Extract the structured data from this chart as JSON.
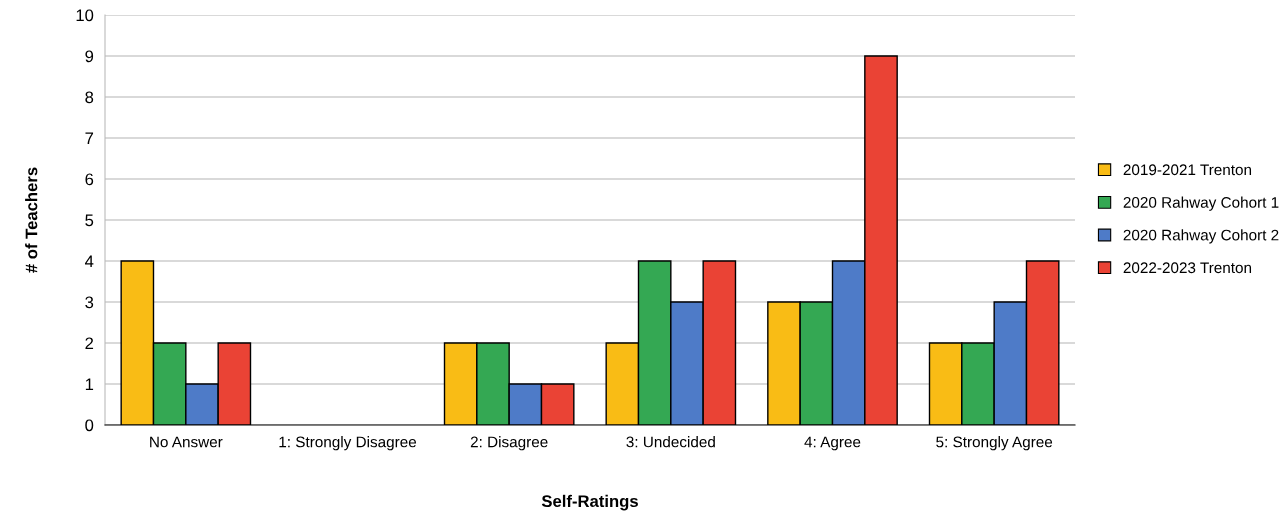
{
  "chart_data": {
    "type": "bar",
    "xlabel": "Self-Ratings",
    "ylabel": "# of Teachers",
    "categories": [
      "No Answer",
      "1: Strongly Disagree",
      "2: Disagree",
      "3: Undecided",
      "4: Agree",
      "5: Strongly Agree"
    ],
    "series": [
      {
        "name": "2019-2021 Trenton",
        "color": "#f9bc15",
        "values": [
          4,
          0,
          2,
          2,
          3,
          2
        ]
      },
      {
        "name": "2020 Rahway Cohort 1",
        "color": "#34a853",
        "values": [
          2,
          0,
          2,
          4,
          3,
          2
        ]
      },
      {
        "name": "2020 Rahway Cohort 2",
        "color": "#4e7bc8",
        "values": [
          1,
          0,
          1,
          3,
          4,
          3
        ]
      },
      {
        "name": "2022-2023 Trenton",
        "color": "#ea4335",
        "values": [
          2,
          0,
          1,
          4,
          9,
          4
        ]
      }
    ],
    "ylim": [
      0,
      10
    ],
    "yticks": [
      0,
      1,
      2,
      3,
      4,
      5,
      6,
      7,
      8,
      9,
      10
    ],
    "grid": "y",
    "legend": "right"
  }
}
